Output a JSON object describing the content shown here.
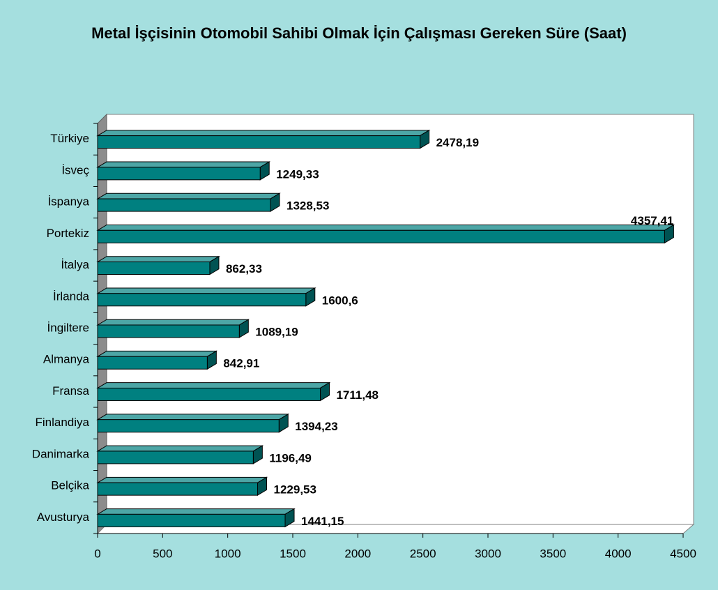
{
  "chart_data": {
    "type": "bar3d",
    "title": "Metal İşçisinin Otomobil Sahibi Olmak İçin Çalışması Gereken Süre (Saat)",
    "orientation": "horizontal",
    "categories": [
      "Türkiye",
      "İsveç",
      "İspanya",
      "Portekiz",
      "İtalya",
      "İrlanda",
      "İngiltere",
      "Almanya",
      "Fransa",
      "Finlandiya",
      "Danimarka",
      "Belçika",
      "Avusturya"
    ],
    "values": [
      2478.19,
      1249.33,
      1328.53,
      4357.41,
      862.33,
      1600.6,
      1089.19,
      842.91,
      1711.48,
      1394.23,
      1196.49,
      1229.53,
      1441.15
    ],
    "value_labels": [
      "2478,19",
      "1249,33",
      "1328,53",
      "4357,41",
      "862,33",
      "1600,6",
      "1089,19",
      "842,91",
      "1711,48",
      "1394,23",
      "1196,49",
      "1229,53",
      "1441,15"
    ],
    "color": "#008080",
    "xlim": [
      0,
      4500
    ],
    "xticks": [
      0,
      500,
      1000,
      1500,
      2000,
      2500,
      3000,
      3500,
      4000,
      4500
    ]
  }
}
